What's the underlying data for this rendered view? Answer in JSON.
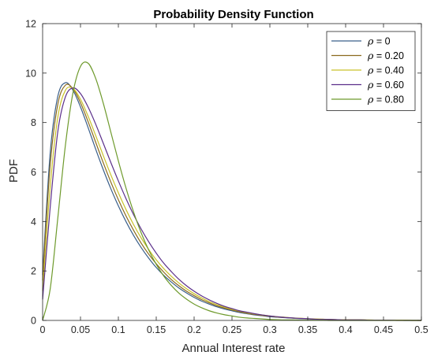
{
  "chart_data": {
    "type": "line",
    "title": "Probability Density Function",
    "xlabel": "Annual Interest rate",
    "ylabel": "PDF",
    "xlim": [
      0,
      0.5
    ],
    "ylim": [
      0,
      12
    ],
    "x_ticks": [
      "0",
      "0.05",
      "0.1",
      "0.15",
      "0.2",
      "0.25",
      "0.3",
      "0.35",
      "0.4",
      "0.45",
      "0.5"
    ],
    "y_ticks": [
      "0",
      "2",
      "4",
      "6",
      "8",
      "10",
      "12"
    ],
    "grid": false,
    "legend_position": "top-right",
    "legend_symbol": "ρ",
    "x": [
      0,
      0.01,
      0.02,
      0.03,
      0.04,
      0.05,
      0.06,
      0.07,
      0.08,
      0.09,
      0.1,
      0.11,
      0.12,
      0.13,
      0.14,
      0.15,
      0.16,
      0.17,
      0.18,
      0.19,
      0.2,
      0.21,
      0.22,
      0.23,
      0.24,
      0.25,
      0.26,
      0.27,
      0.28,
      0.29,
      0.3,
      0.31,
      0.32,
      0.33,
      0.34,
      0.35,
      0.36,
      0.37,
      0.38,
      0.39,
      0.4,
      0.41,
      0.42,
      0.43,
      0.44,
      0.45,
      0.46,
      0.47,
      0.48,
      0.49,
      0.5
    ],
    "series": [
      {
        "name": "= 0",
        "color": "#3a5f8a",
        "values": [
          1.85,
          6.77,
          9.05,
          9.61,
          9.31,
          8.63,
          7.8,
          6.93,
          6.1,
          5.33,
          4.63,
          4.0,
          3.44,
          2.95,
          2.52,
          2.14,
          1.82,
          1.55,
          1.31,
          1.11,
          0.93,
          0.78,
          0.66,
          0.55,
          0.46,
          0.39,
          0.32,
          0.27,
          0.22,
          0.19,
          0.15,
          0.13,
          0.11,
          0.09,
          0.07,
          0.06,
          0.05,
          0.04,
          0.03,
          0.03,
          0.02,
          0.02,
          0.02,
          0.01,
          0.01,
          0.01,
          0.01,
          0.01,
          0.0,
          0.0,
          0.0
        ]
      },
      {
        "name": "= 0.20",
        "color": "#8b6a1e",
        "values": [
          1.62,
          6.28,
          8.73,
          9.51,
          9.37,
          8.8,
          8.04,
          7.21,
          6.38,
          5.6,
          4.88,
          4.23,
          3.65,
          3.13,
          2.68,
          2.29,
          1.95,
          1.65,
          1.4,
          1.18,
          1.0,
          0.84,
          0.71,
          0.59,
          0.5,
          0.42,
          0.35,
          0.29,
          0.24,
          0.2,
          0.17,
          0.14,
          0.12,
          0.1,
          0.08,
          0.07,
          0.05,
          0.05,
          0.04,
          0.03,
          0.03,
          0.02,
          0.02,
          0.01,
          0.01,
          0.01,
          0.01,
          0.01,
          0.01,
          0.0,
          0.0
        ]
      },
      {
        "name": "= 0.40",
        "color": "#c9c22a",
        "values": [
          1.2,
          5.4,
          8.2,
          9.3,
          9.38,
          8.94,
          8.26,
          7.48,
          6.67,
          5.89,
          5.16,
          4.49,
          3.88,
          3.34,
          2.87,
          2.45,
          2.09,
          1.78,
          1.51,
          1.28,
          1.08,
          0.91,
          0.76,
          0.64,
          0.54,
          0.45,
          0.38,
          0.31,
          0.26,
          0.22,
          0.18,
          0.15,
          0.13,
          0.1,
          0.09,
          0.07,
          0.06,
          0.05,
          0.04,
          0.03,
          0.03,
          0.02,
          0.02,
          0.02,
          0.01,
          0.01,
          0.01,
          0.01,
          0.01,
          0.0,
          0.0
        ]
      },
      {
        "name": "= 0.60",
        "color": "#5b2f8a",
        "values": [
          0.85,
          4.57,
          7.62,
          9.03,
          9.4,
          9.17,
          8.63,
          7.94,
          7.17,
          6.39,
          5.64,
          4.93,
          4.28,
          3.7,
          3.18,
          2.72,
          2.31,
          1.97,
          1.66,
          1.4,
          1.18,
          0.99,
          0.83,
          0.69,
          0.57,
          0.48,
          0.39,
          0.33,
          0.27,
          0.22,
          0.18,
          0.15,
          0.12,
          0.1,
          0.08,
          0.07,
          0.05,
          0.04,
          0.04,
          0.03,
          0.02,
          0.02,
          0.02,
          0.01,
          0.01,
          0.01,
          0.01,
          0.0,
          0.0,
          0.0,
          0.0
        ]
      },
      {
        "name": "= 0.80",
        "color": "#6e9a2c",
        "values": [
          0.0,
          1.27,
          4.12,
          7.06,
          9.19,
          10.27,
          10.4,
          9.79,
          8.79,
          7.62,
          6.45,
          5.36,
          4.39,
          3.55,
          2.85,
          2.27,
          1.79,
          1.41,
          1.1,
          0.86,
          0.66,
          0.51,
          0.39,
          0.3,
          0.23,
          0.18,
          0.13,
          0.1,
          0.08,
          0.06,
          0.04,
          0.03,
          0.02,
          0.02,
          0.01,
          0.01,
          0.01,
          0.01,
          0.0,
          0.0,
          0.0,
          0.0,
          0.0,
          0.0,
          0.0,
          0.0,
          0.0,
          0.0,
          0.0,
          0.0,
          0.0
        ]
      }
    ]
  }
}
